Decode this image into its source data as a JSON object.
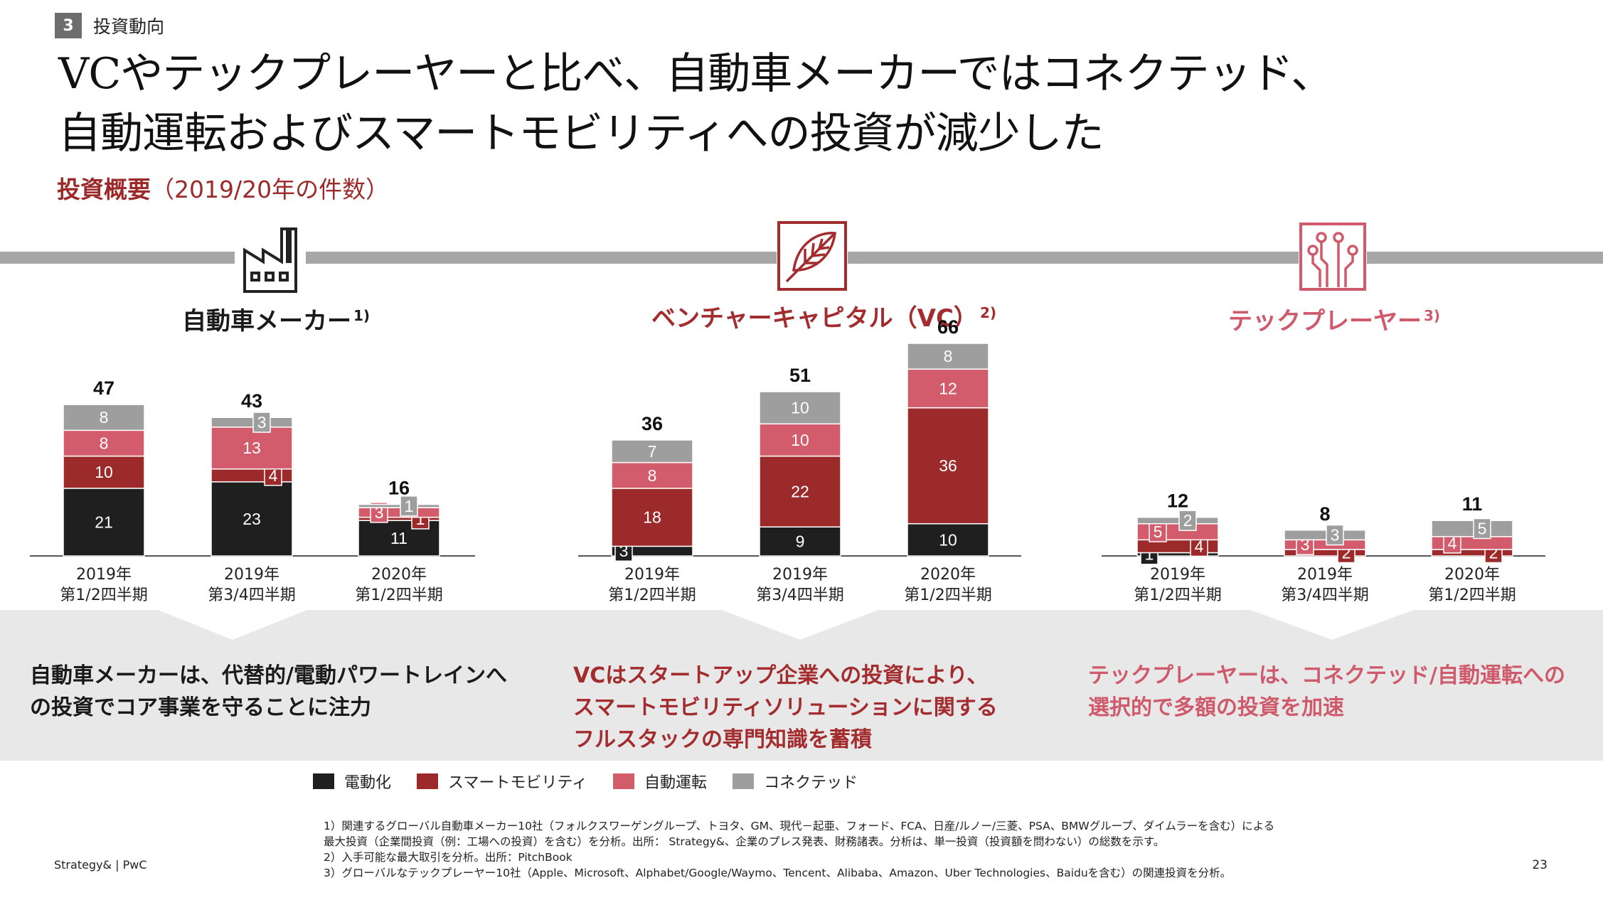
{
  "header": {
    "section_number": "3",
    "section_label": "投資動向",
    "title_line1": "VCやテックプレーヤーと比べ、自動車メーカーではコネクテッド、",
    "title_line2": "自動運転およびスマートモビリティへの投資が減少した",
    "subtitle_bold": "投資概要",
    "subtitle_rest": "（2019/20年の件数）"
  },
  "colors": {
    "electrification": "#1f1f1f",
    "smart_mobility": "#9c2a2b",
    "autonomous": "#d25b6c",
    "connected": "#9e9e9e",
    "panel_title_oem": "#1a1a1a",
    "panel_title_vc": "#a32c2e",
    "panel_title_tech": "#cf5a6b"
  },
  "panels": [
    {
      "title": "自動車メーカー",
      "note": "1)",
      "icon": "factory-icon",
      "caption": [
        "自動車メーカーは、代替的/電動パワートレインへ",
        "の投資でコア事業を守ることに注力"
      ]
    },
    {
      "title": "ベンチャーキャピタル（VC）",
      "note": "2)",
      "icon": "leaf-icon",
      "caption": [
        "VCはスタートアップ企業への投資により、",
        "スマートモビリティソリューションに関する",
        "フルスタックの専門知識を蓄積"
      ]
    },
    {
      "title": "テックプレーヤー",
      "note": "3)",
      "icon": "circuit-icon",
      "caption": [
        "テックプレーヤーは、コネクテッド/自動運転への",
        "選択的で多額の投資を加速"
      ]
    }
  ],
  "chart_data": [
    {
      "type": "bar",
      "stacked": true,
      "title": "自動車メーカー",
      "categories": [
        [
          "2019年",
          "第1/2四半期"
        ],
        [
          "2019年",
          "第3/4四半期"
        ],
        [
          "2020年",
          "第1/2四半期"
        ]
      ],
      "totals": [
        47,
        43,
        16
      ],
      "series": [
        {
          "name": "電動化",
          "values": [
            21,
            23,
            11
          ]
        },
        {
          "name": "スマートモビリティ",
          "values": [
            10,
            4,
            1
          ]
        },
        {
          "name": "自動運転",
          "values": [
            8,
            13,
            3
          ]
        },
        {
          "name": "コネクテッド",
          "values": [
            8,
            3,
            1
          ]
        }
      ]
    },
    {
      "type": "bar",
      "stacked": true,
      "title": "ベンチャーキャピタル（VC）",
      "categories": [
        [
          "2019年",
          "第1/2四半期"
        ],
        [
          "2019年",
          "第3/4四半期"
        ],
        [
          "2020年",
          "第1/2四半期"
        ]
      ],
      "totals": [
        36,
        51,
        66
      ],
      "series": [
        {
          "name": "電動化",
          "values": [
            3,
            9,
            10
          ]
        },
        {
          "name": "スマートモビリティ",
          "values": [
            18,
            22,
            36
          ]
        },
        {
          "name": "自動運転",
          "values": [
            8,
            10,
            12
          ]
        },
        {
          "name": "コネクテッド",
          "values": [
            7,
            10,
            8
          ]
        }
      ]
    },
    {
      "type": "bar",
      "stacked": true,
      "title": "テックプレーヤー",
      "categories": [
        [
          "2019年",
          "第1/2四半期"
        ],
        [
          "2019年",
          "第3/4四半期"
        ],
        [
          "2020年",
          "第1/2四半期"
        ]
      ],
      "totals": [
        12,
        8,
        11
      ],
      "series": [
        {
          "name": "電動化",
          "values": [
            1,
            0,
            0
          ]
        },
        {
          "name": "スマートモビリティ",
          "values": [
            4,
            2,
            2
          ]
        },
        {
          "name": "自動運転",
          "values": [
            5,
            3,
            4
          ]
        },
        {
          "name": "コネクテッド",
          "values": [
            2,
            3,
            5
          ]
        }
      ]
    }
  ],
  "legend": [
    {
      "label": "電動化",
      "color": "#1f1f1f"
    },
    {
      "label": "スマートモビリティ",
      "color": "#9c2a2b"
    },
    {
      "label": "自動運転",
      "color": "#d25b6c"
    },
    {
      "label": "コネクテッド",
      "color": "#9e9e9e"
    }
  ],
  "footnotes": [
    "1）関連するグローバル自動車メーカー10社（フォルクスワーゲングループ、トヨタ、GM、現代－起亜、フォード、FCA、日産/ルノー/三菱、PSA、BMWグループ、ダイムラーを含む）による",
    "最大投資（企業間投資（例：工場への投資）を含む）を分析。出所： Strategy&、企業のプレス発表、財務諸表。分析は、単一投資（投資額を問わない）の総数を示す。",
    "2）入手可能な最大取引を分析。出所：PitchBook",
    "3）グローバルなテックプレーヤー10社（Apple、Microsoft、Alphabet/Google/Waymo、Tencent、Alibaba、Amazon、Uber Technologies、Baiduを含む）の関連投資を分析。"
  ],
  "footer": {
    "source": "Strategy& | PwC",
    "page": "23"
  }
}
